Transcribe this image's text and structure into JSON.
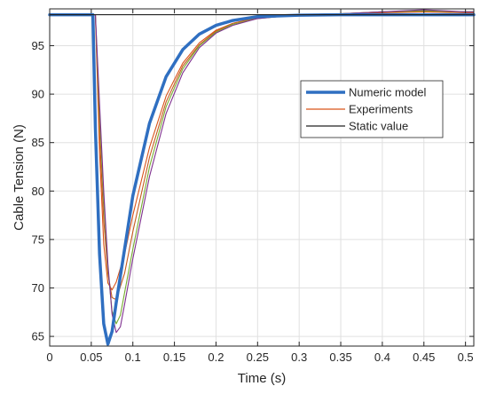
{
  "chart_data": {
    "type": "line",
    "xlabel": "Time (s)",
    "ylabel": "Cable Tension (N)",
    "xlim": [
      0,
      0.51
    ],
    "ylim": [
      64,
      98.8
    ],
    "x_ticks": [
      0,
      0.05,
      0.1,
      0.15,
      0.2,
      0.25,
      0.3,
      0.35,
      0.4,
      0.45,
      0.5
    ],
    "x_tick_labels": [
      "0",
      "0.05",
      "0.1",
      "0.15",
      "0.2",
      "0.25",
      "0.3",
      "0.35",
      "0.4",
      "0.45",
      "0.5"
    ],
    "y_ticks": [
      65,
      70,
      75,
      80,
      85,
      90,
      95
    ],
    "y_tick_labels": [
      "65",
      "70",
      "75",
      "80",
      "85",
      "90",
      "95"
    ],
    "grid": true,
    "legend_position": "right",
    "legend": [
      "Numeric model",
      "Experiments",
      "Static value"
    ],
    "colors": {
      "numeric": "#2f6fc1",
      "experiments": "#d95319",
      "experiments_alt": [
        "#d95319",
        "#c65a1e",
        "#77ac30",
        "#7e2f8e"
      ],
      "static": "#222222",
      "grid": "#e0e0e0",
      "axis": "#262626"
    },
    "series": [
      {
        "name": "Numeric model",
        "x": [
          0,
          0.052,
          0.055,
          0.06,
          0.065,
          0.07,
          0.075,
          0.08,
          0.09,
          0.1,
          0.12,
          0.14,
          0.16,
          0.18,
          0.2,
          0.22,
          0.25,
          0.3,
          0.35,
          0.4,
          0.45,
          0.5,
          0.51
        ],
        "y": [
          98.2,
          98.2,
          86.5,
          73.5,
          66.3,
          64.2,
          65.5,
          68.5,
          74.0,
          79.5,
          87.0,
          91.8,
          94.6,
          96.2,
          97.1,
          97.6,
          98.0,
          98.15,
          98.2,
          98.2,
          98.2,
          98.2,
          98.2
        ]
      },
      {
        "name": "Experiments",
        "x": [
          0,
          0.055,
          0.06,
          0.065,
          0.07,
          0.075,
          0.08,
          0.09,
          0.1,
          0.12,
          0.14,
          0.16,
          0.18,
          0.2,
          0.22,
          0.25,
          0.3,
          0.35,
          0.4,
          0.45,
          0.5,
          0.51
        ],
        "y": [
          98.2,
          98.2,
          84.0,
          74.5,
          70.5,
          69.8,
          70.6,
          73.5,
          77.5,
          84.5,
          89.8,
          93.2,
          95.3,
          96.6,
          97.3,
          97.9,
          98.2,
          98.3,
          98.4,
          98.5,
          98.4,
          98.4
        ]
      },
      {
        "name": "Experiments",
        "x": [
          0,
          0.055,
          0.06,
          0.065,
          0.07,
          0.075,
          0.08,
          0.09,
          0.1,
          0.12,
          0.14,
          0.16,
          0.18,
          0.2,
          0.22,
          0.25,
          0.3,
          0.35,
          0.4,
          0.45,
          0.5,
          0.51
        ],
        "y": [
          98.2,
          98.2,
          86.0,
          77.0,
          71.5,
          69.0,
          68.8,
          71.5,
          75.8,
          83.5,
          89.2,
          92.9,
          95.1,
          96.5,
          97.3,
          97.9,
          98.2,
          98.3,
          98.5,
          98.6,
          98.5,
          98.5
        ]
      },
      {
        "name": "Experiments",
        "x": [
          0,
          0.055,
          0.06,
          0.065,
          0.07,
          0.075,
          0.08,
          0.085,
          0.09,
          0.1,
          0.12,
          0.14,
          0.16,
          0.18,
          0.2,
          0.22,
          0.25,
          0.3,
          0.35,
          0.4,
          0.45,
          0.5,
          0.51
        ],
        "y": [
          98.2,
          98.2,
          88.0,
          79.0,
          72.0,
          67.6,
          66.3,
          67.2,
          69.5,
          74.0,
          82.5,
          88.7,
          92.6,
          95.0,
          96.4,
          97.2,
          97.8,
          98.2,
          98.3,
          98.5,
          98.6,
          98.5,
          98.5
        ]
      },
      {
        "name": "Experiments",
        "x": [
          0,
          0.055,
          0.06,
          0.065,
          0.07,
          0.075,
          0.08,
          0.085,
          0.09,
          0.1,
          0.12,
          0.14,
          0.16,
          0.18,
          0.2,
          0.22,
          0.25,
          0.3,
          0.35,
          0.4,
          0.45,
          0.5,
          0.51
        ],
        "y": [
          98.2,
          98.2,
          89.0,
          80.0,
          72.5,
          67.3,
          65.4,
          66.0,
          68.3,
          73.0,
          81.5,
          88.0,
          92.2,
          94.8,
          96.3,
          97.1,
          97.8,
          98.2,
          98.3,
          98.5,
          98.7,
          98.5,
          98.5
        ]
      },
      {
        "name": "Static value",
        "x": [
          0,
          0.51
        ],
        "y": [
          98.2,
          98.2
        ]
      }
    ]
  }
}
